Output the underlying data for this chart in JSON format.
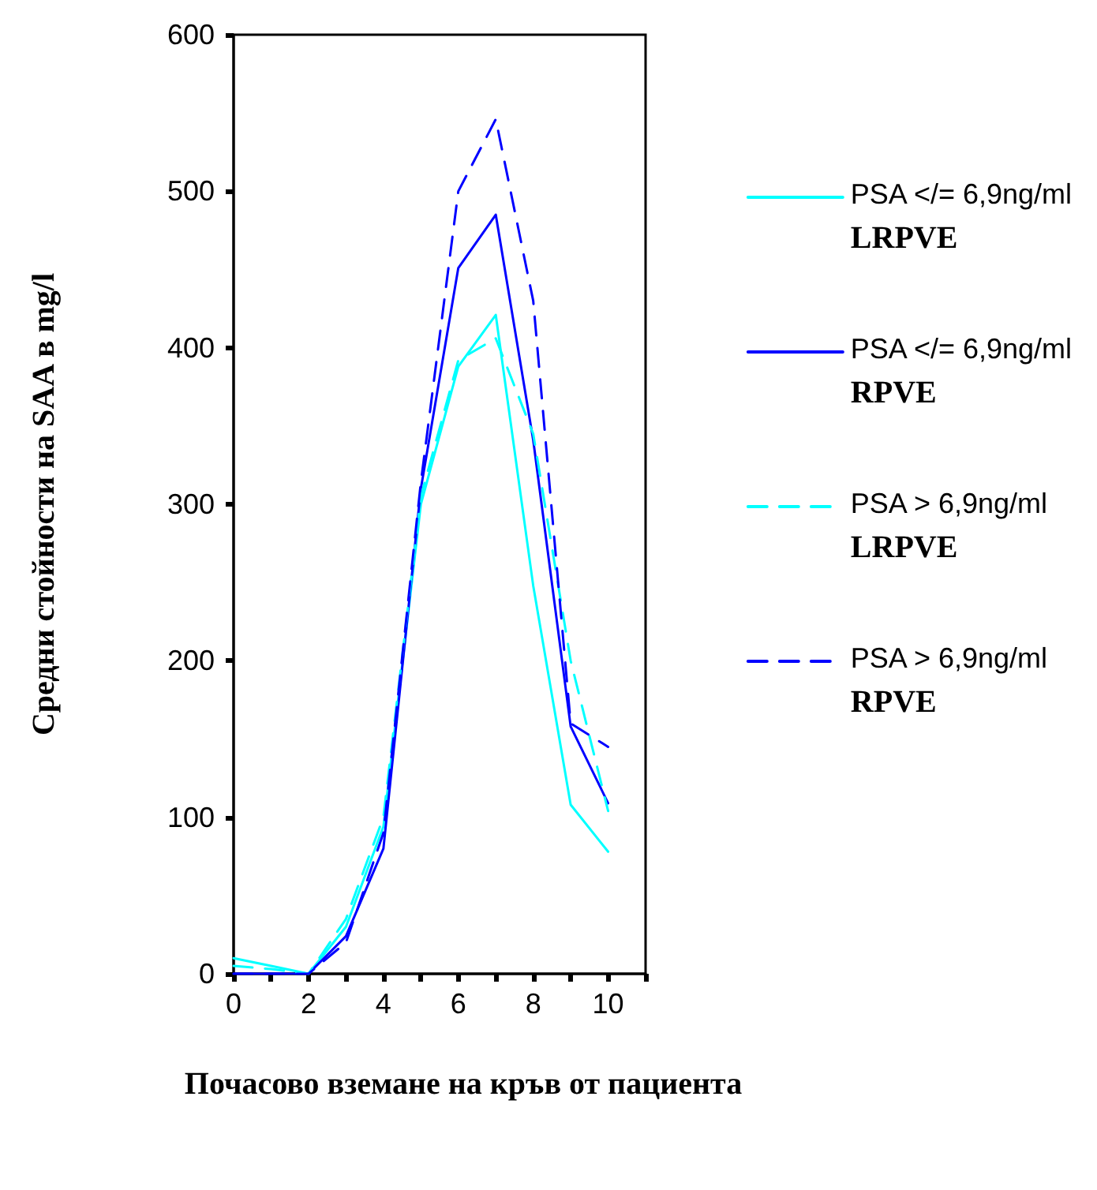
{
  "chart_data": {
    "type": "line",
    "xlabel": "Почасово вземане на кръв от пациента",
    "ylabel": "Средни стойности на SAA в mg/l",
    "x": [
      0,
      1,
      2,
      3,
      4,
      5,
      6,
      7,
      8,
      9,
      10
    ],
    "series": [
      {
        "name": "PSA </= 6,9ng/ml LRPVE",
        "color": "#00ffff",
        "line_style": "solid",
        "values": [
          10,
          5,
          0,
          30,
          94,
          300,
          388,
          421,
          248,
          108,
          78
        ]
      },
      {
        "name": "PSA </= 6,9ng/ml RPVE",
        "color": "#0000ff",
        "line_style": "solid",
        "values": [
          0,
          0,
          0,
          24,
          80,
          310,
          451,
          485,
          341,
          158,
          109
        ]
      },
      {
        "name": "PSA > 6,9ng/ml LRPVE",
        "color": "#00ffff",
        "line_style": "dashed",
        "values": [
          5,
          3,
          0,
          35,
          100,
          305,
          392,
          406,
          345,
          200,
          104
        ]
      },
      {
        "name": "PSA > 6,9ng/ml RPVE",
        "color": "#0000ff",
        "line_style": "dashed",
        "values": [
          0,
          0,
          0,
          20,
          90,
          314,
          500,
          546,
          430,
          160,
          145
        ]
      }
    ],
    "xlim": [
      0,
      11
    ],
    "xticks": [
      0,
      {
        "value": 1,
        "label": null
      },
      2,
      {
        "value": 3,
        "label": null
      },
      4,
      {
        "value": 5,
        "label": null
      },
      6,
      {
        "value": 7,
        "label": null
      },
      8,
      {
        "value": 9,
        "label": null
      },
      10,
      {
        "value": 11,
        "label": null
      }
    ],
    "ylim": [
      0,
      600
    ],
    "yticks": [
      0,
      100,
      200,
      300,
      400,
      500,
      600
    ],
    "grid": false,
    "legend": "right",
    "marker": "none"
  }
}
